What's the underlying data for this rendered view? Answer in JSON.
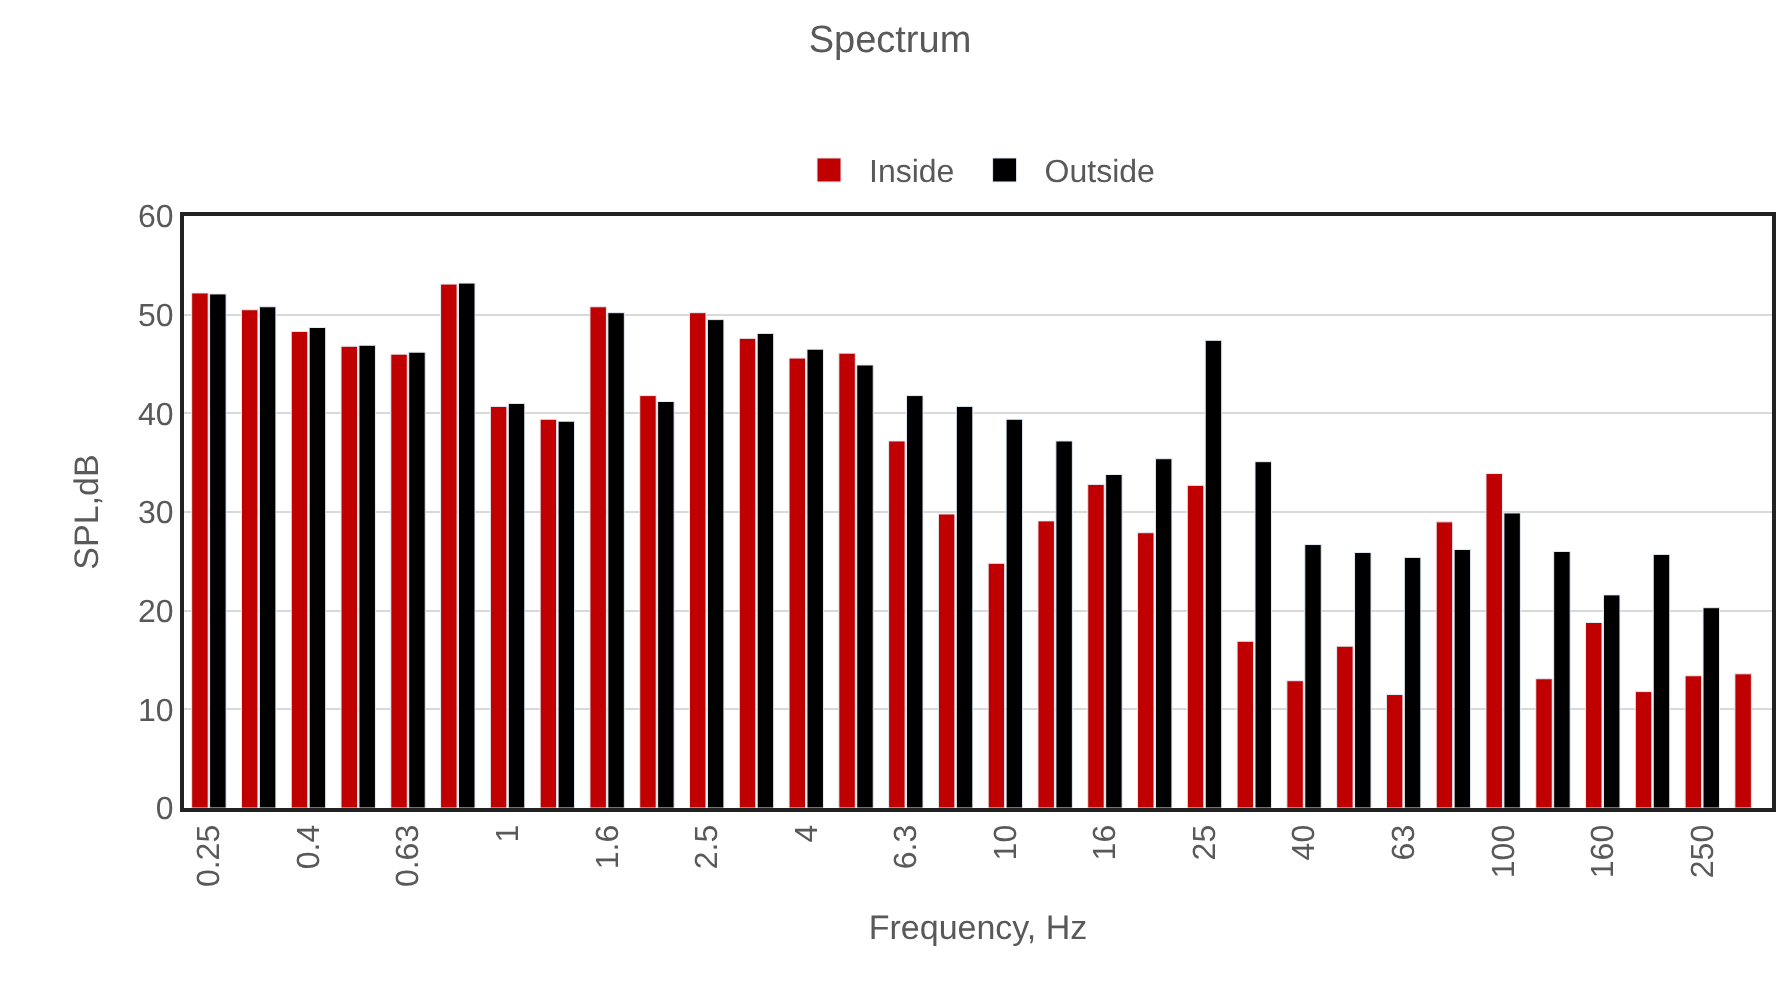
{
  "chart_data": {
    "type": "bar",
    "title": "Spectrum",
    "xlabel": "Frequency, Hz",
    "ylabel": "SPL,dB",
    "categories": [
      "0.25",
      null,
      "0.4",
      null,
      "0.63",
      null,
      "1",
      null,
      "1.6",
      null,
      "2.5",
      null,
      "4",
      null,
      "6.3",
      null,
      "10",
      null,
      "16",
      null,
      "25",
      null,
      "40",
      null,
      "63",
      null,
      "100",
      null,
      "160",
      null,
      "250",
      null
    ],
    "series": [
      {
        "name": "Inside",
        "color": "#c00000",
        "values": [
          52.2,
          50.5,
          48.3,
          46.8,
          46.0,
          53.1,
          40.7,
          39.4,
          50.8,
          41.8,
          50.2,
          47.6,
          45.6,
          46.1,
          37.2,
          29.8,
          24.8,
          29.1,
          32.8,
          27.9,
          32.7,
          16.9,
          12.9,
          16.4,
          11.5,
          29.0,
          33.9,
          13.1,
          18.8,
          11.8,
          13.4,
          13.6
        ]
      },
      {
        "name": "Outside",
        "color": "#000000",
        "values": [
          52.1,
          50.8,
          48.7,
          46.9,
          46.2,
          53.2,
          41.0,
          39.2,
          50.2,
          41.2,
          49.5,
          48.1,
          46.5,
          44.9,
          41.8,
          40.7,
          39.4,
          37.2,
          33.8,
          35.4,
          47.4,
          35.1,
          26.7,
          25.9,
          25.4,
          26.2,
          29.9,
          26.0,
          21.6,
          25.7,
          20.3,
          null
        ]
      }
    ],
    "ylim": [
      0,
      60
    ],
    "yticks": [
      0,
      10,
      20,
      30,
      40,
      50,
      60
    ],
    "grid": "y",
    "legend": "top"
  }
}
